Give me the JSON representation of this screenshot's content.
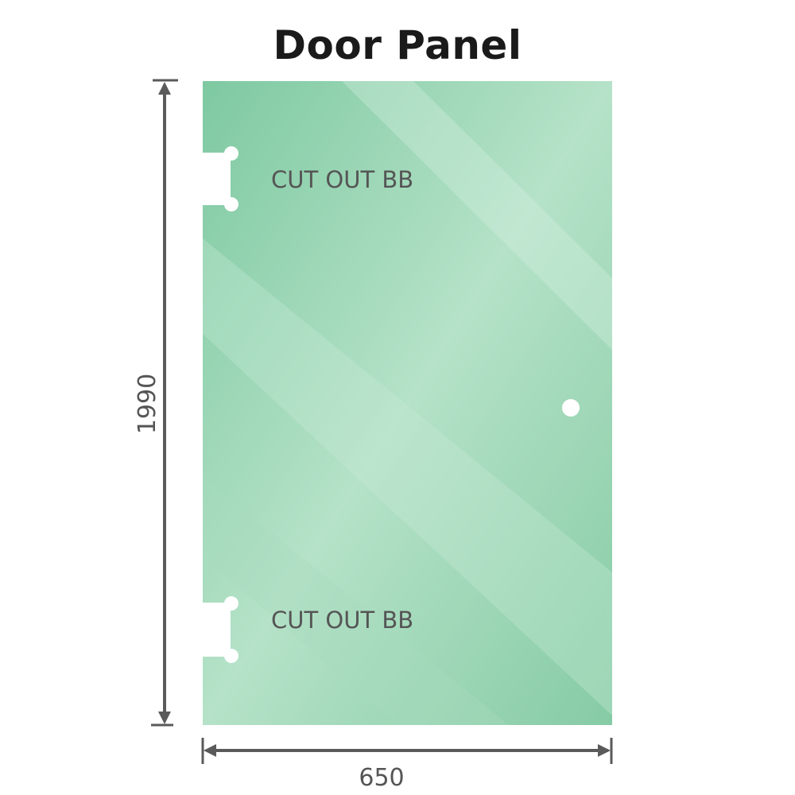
{
  "title": "Door Panel",
  "panel": {
    "glass_color": "#8fd0ad",
    "cutout_labels": [
      "CUT OUT BB",
      "CUT OUT BB"
    ]
  },
  "dimensions": {
    "height": "1990",
    "width": "650",
    "line_color": "#5a5a5a"
  }
}
